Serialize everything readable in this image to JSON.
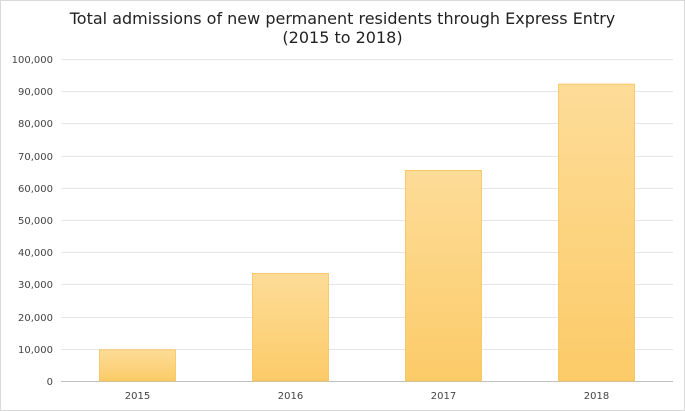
{
  "chart_data": {
    "type": "bar",
    "title": "Total admissions of new permanent residents through Express Entry",
    "subtitle": "(2015 to 2018)",
    "categories": [
      "2015",
      "2016",
      "2017",
      "2018"
    ],
    "values": [
      9700,
      33400,
      65400,
      92200
    ],
    "ylim": [
      0,
      100000
    ],
    "yticks": [
      0,
      10000,
      20000,
      30000,
      40000,
      50000,
      60000,
      70000,
      80000,
      90000,
      100000
    ],
    "ytick_labels": [
      "0",
      "10,000",
      "20,000",
      "30,000",
      "40,000",
      "50,000",
      "60,000",
      "70,000",
      "80,000",
      "90,000",
      "100,000"
    ],
    "xlabel": "",
    "ylabel": "",
    "grid": true,
    "legend": "none",
    "colors": {
      "bar_top": "#fddc98",
      "bar_bottom": "#fccb68",
      "bar_edge": "#f6c256",
      "grid": "#e6e6e6"
    }
  }
}
